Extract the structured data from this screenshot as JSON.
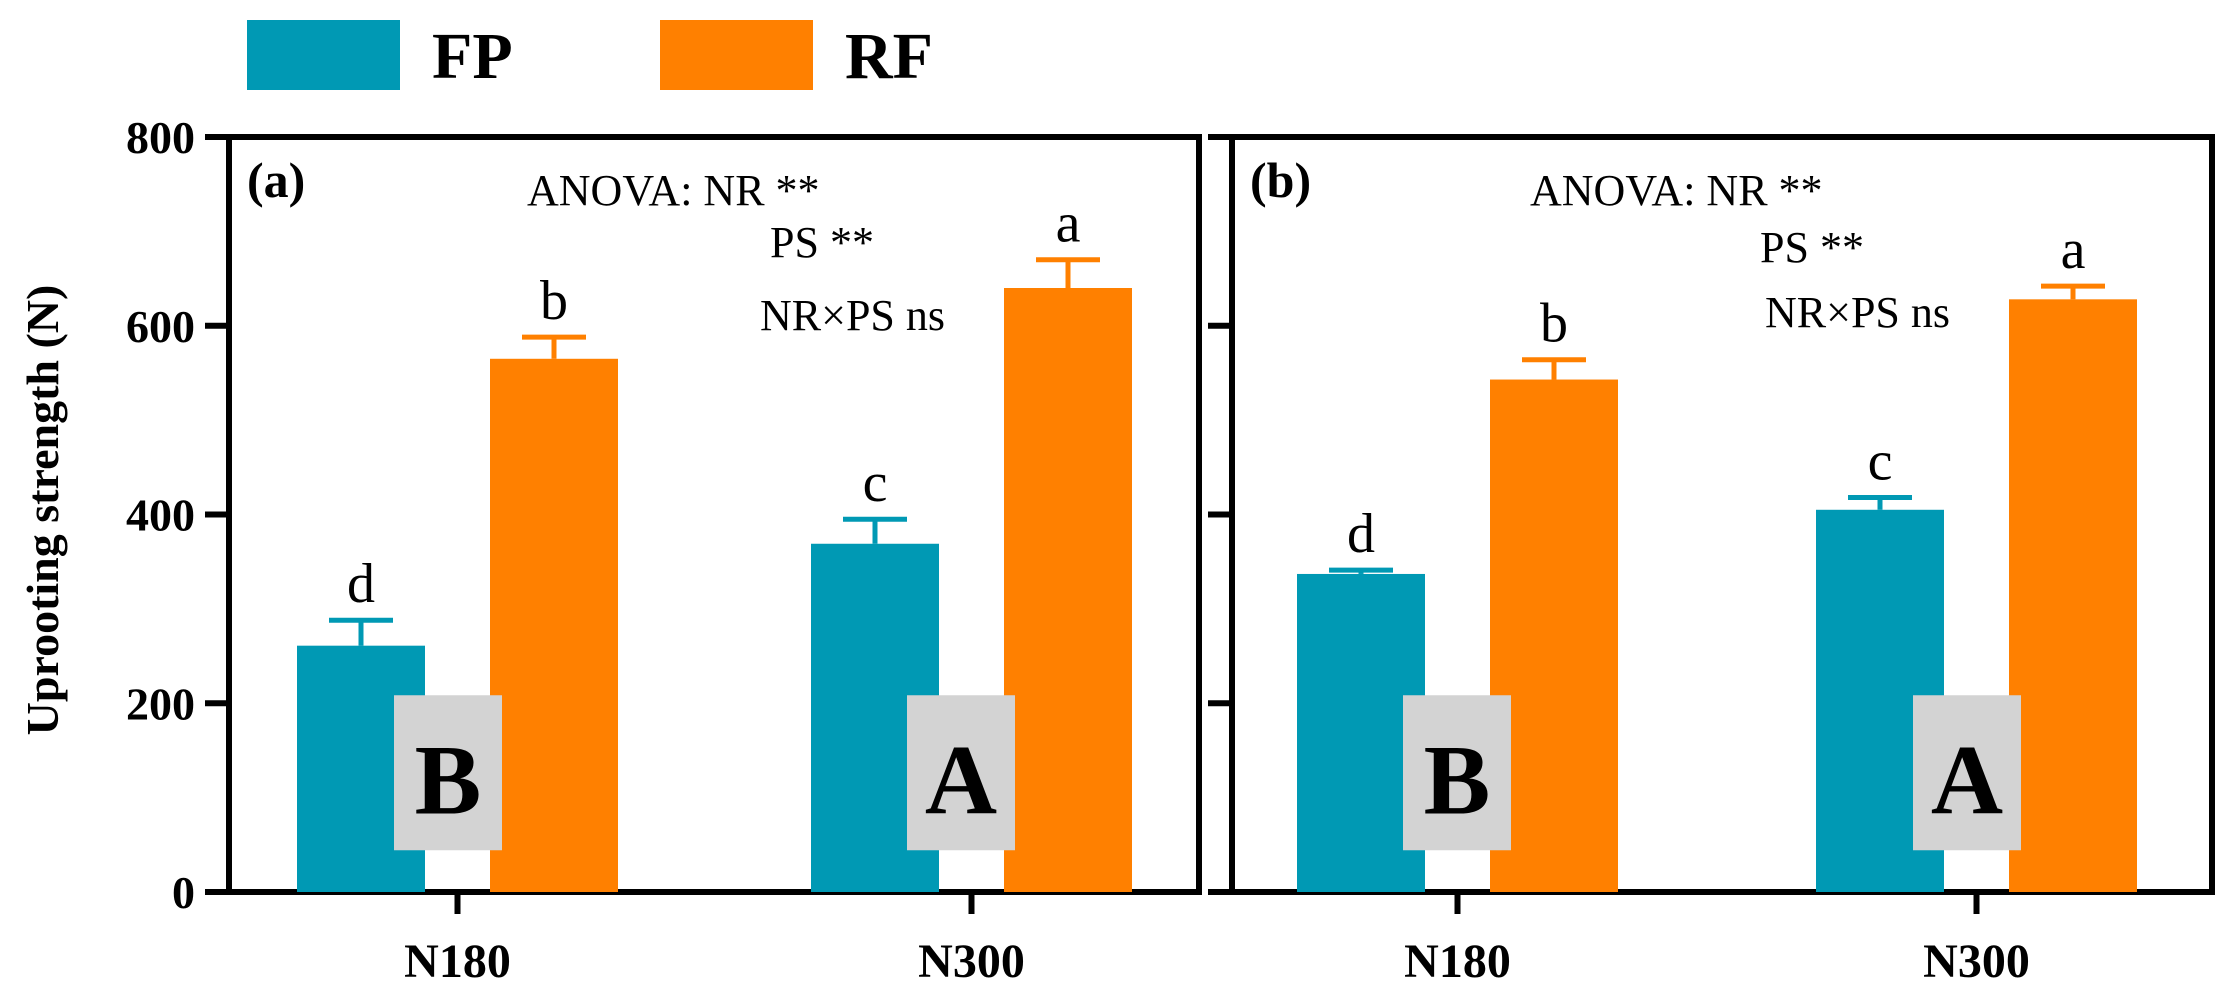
{
  "legend": [
    {
      "label": "FP",
      "color": "#0099B4"
    },
    {
      "label": "RF",
      "color": "#FF8000"
    }
  ],
  "ylabel": "Uprooting strength (N)",
  "colors": {
    "fp": "#0099B4",
    "rf": "#FF8000",
    "box": "#D3D3D3",
    "axis": "#000000"
  },
  "chart_data": [
    {
      "type": "bar",
      "panel": "(a)",
      "categories": [
        "N180",
        "N300"
      ],
      "series": [
        {
          "name": "FP",
          "values": [
            261,
            369
          ],
          "errors": [
            27,
            26
          ],
          "letters": [
            "d",
            "c"
          ]
        },
        {
          "name": "RF",
          "values": [
            565,
            640
          ],
          "errors": [
            23,
            30
          ],
          "letters": [
            "b",
            "a"
          ]
        }
      ],
      "group_letters": [
        "B",
        "A"
      ],
      "anova": [
        "ANOVA: NR **",
        "PS **",
        "NR×PS ns"
      ],
      "ylim": [
        0,
        800
      ],
      "yticks": [
        0,
        200,
        400,
        600,
        800
      ],
      "ylabel": "Uprooting strength (N)"
    },
    {
      "type": "bar",
      "panel": "(b)",
      "categories": [
        "N180",
        "N300"
      ],
      "series": [
        {
          "name": "FP",
          "values": [
            337,
            405
          ],
          "errors": [
            4,
            13
          ],
          "letters": [
            "d",
            "c"
          ]
        },
        {
          "name": "RF",
          "values": [
            543,
            628
          ],
          "errors": [
            21,
            14
          ],
          "letters": [
            "b",
            "a"
          ]
        }
      ],
      "group_letters": [
        "B",
        "A"
      ],
      "anova": [
        "ANOVA: NR **",
        "PS **",
        "NR×PS ns"
      ],
      "ylim": [
        0,
        800
      ],
      "yticks": [
        0,
        200,
        400,
        600,
        800
      ]
    }
  ]
}
